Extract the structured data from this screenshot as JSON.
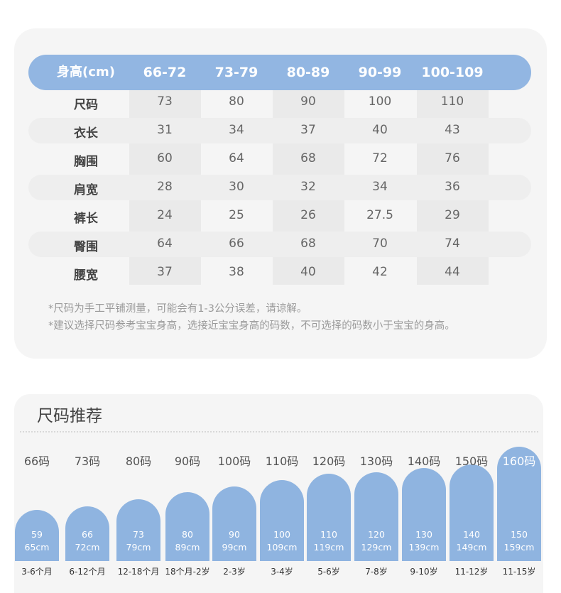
{
  "size_chart": {
    "columns": [
      "身高(cm)",
      "66-72",
      "73-79",
      "80-89",
      "90-99",
      "100-109"
    ],
    "rows": [
      {
        "label": "尺码",
        "values": [
          "73",
          "80",
          "90",
          "100",
          "110"
        ]
      },
      {
        "label": "衣长",
        "values": [
          "31",
          "34",
          "37",
          "40",
          "43"
        ]
      },
      {
        "label": "胸围",
        "values": [
          "60",
          "64",
          "68",
          "72",
          "76"
        ]
      },
      {
        "label": "肩宽",
        "values": [
          "28",
          "30",
          "32",
          "34",
          "36"
        ]
      },
      {
        "label": "裤长",
        "values": [
          "24",
          "25",
          "26",
          "27.5",
          "29"
        ]
      },
      {
        "label": "臀围",
        "values": [
          "64",
          "66",
          "68",
          "70",
          "74"
        ]
      },
      {
        "label": "腰宽",
        "values": [
          "37",
          "38",
          "40",
          "42",
          "44"
        ]
      }
    ],
    "notes": [
      "*尺码为手工平铺测量，可能会有1-3公分误差，请谅解。",
      "*建议选择尺码参考宝宝身高，选接近宝宝身高的码数，不可选择的码数小于宝宝的身高。"
    ],
    "header_color": "#92b6e2"
  },
  "recommendation": {
    "title": "尺码推荐",
    "pill_color": "#8fb4e0",
    "items": [
      {
        "size": "66码",
        "min": "59",
        "max": "65cm",
        "age": "3-6个月"
      },
      {
        "size": "73码",
        "min": "66",
        "max": "72cm",
        "age": "6-12个月"
      },
      {
        "size": "80码",
        "min": "73",
        "max": "79cm",
        "age": "12-18个月"
      },
      {
        "size": "90码",
        "min": "80",
        "max": "89cm",
        "age": "18个月-2岁"
      },
      {
        "size": "100码",
        "min": "90",
        "max": "99cm",
        "age": "2-3岁"
      },
      {
        "size": "110码",
        "min": "100",
        "max": "109cm",
        "age": "3-4岁"
      },
      {
        "size": "120码",
        "min": "110",
        "max": "119cm",
        "age": "5-6岁"
      },
      {
        "size": "130码",
        "min": "120",
        "max": "129cm",
        "age": "7-8岁"
      },
      {
        "size": "140码",
        "min": "130",
        "max": "139cm",
        "age": "9-10岁"
      },
      {
        "size": "150码",
        "min": "140",
        "max": "149cm",
        "age": "11-12岁"
      },
      {
        "size": "160码",
        "min": "150",
        "max": "159cm",
        "age": "11-15岁"
      }
    ]
  }
}
